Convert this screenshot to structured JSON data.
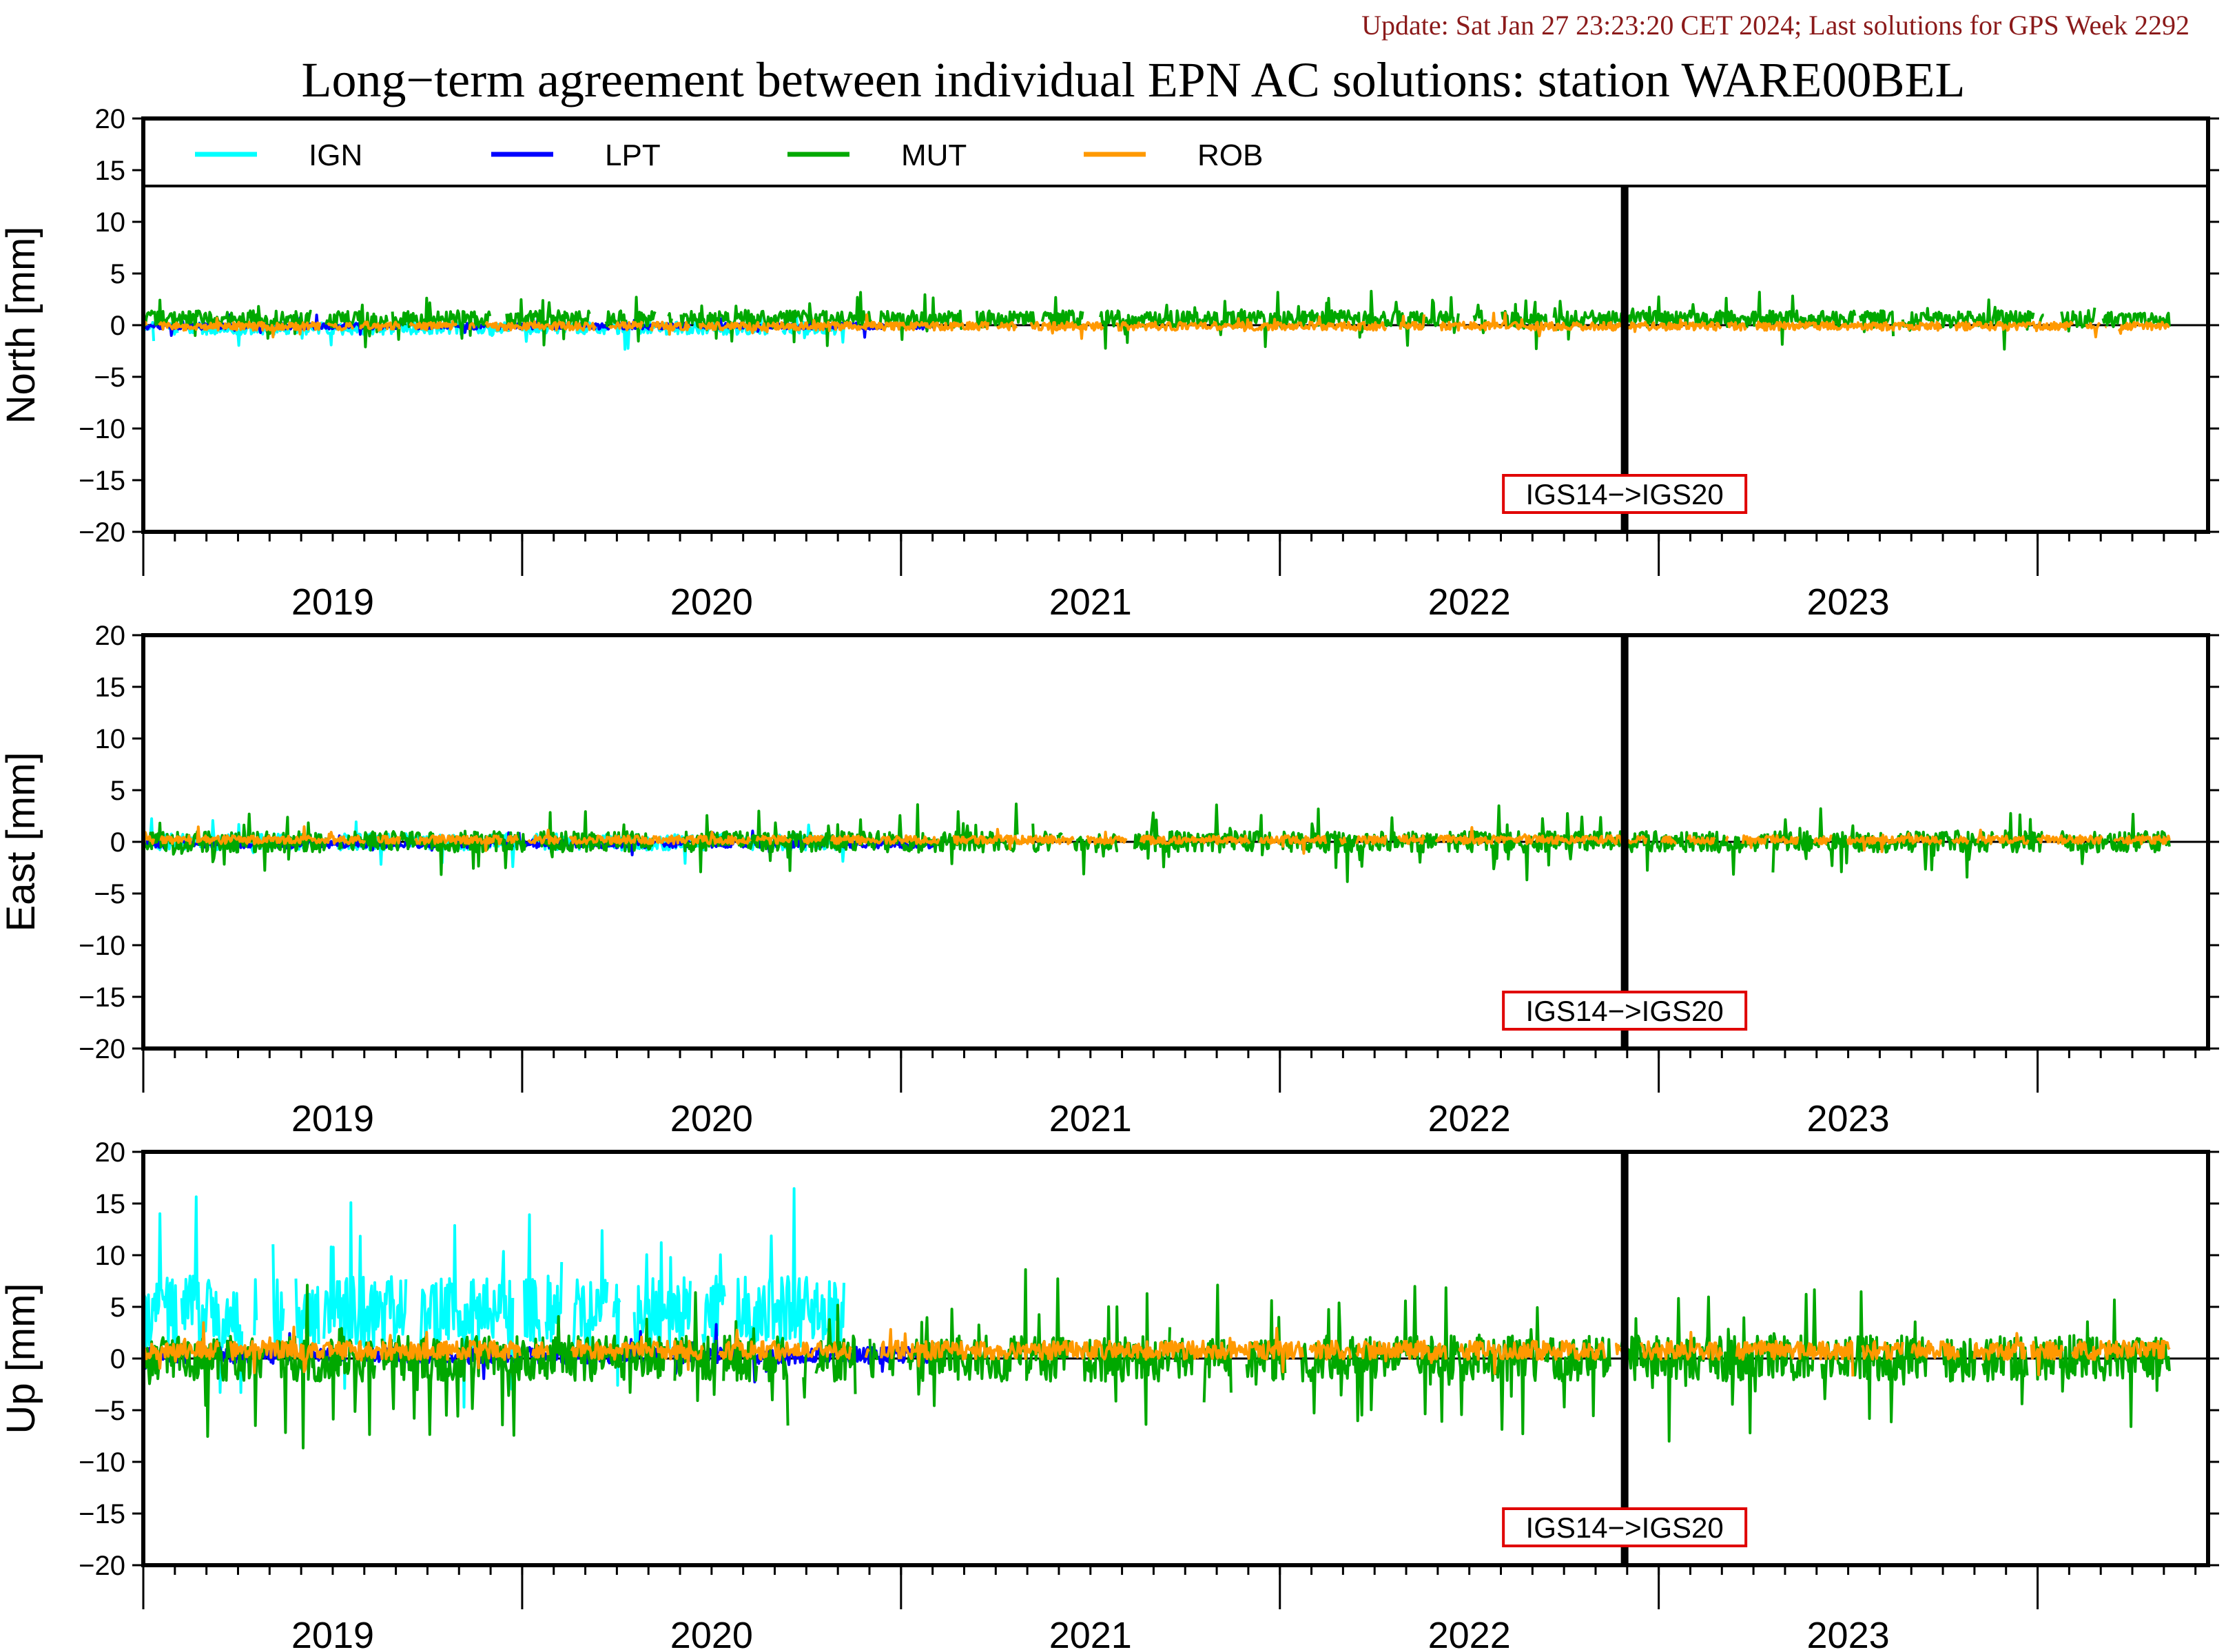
{
  "update_text": "Update: Sat Jan 27 23:23:20 CET 2024; Last solutions for GPS Week 2292",
  "title": "Long−term agreement between individual EPN AC solutions: station WARE00BEL",
  "colors": {
    "IGN": "#00ffff",
    "LPT": "#0000ff",
    "MUT": "#00a800",
    "ROB": "#ff9900",
    "annotation_border": "#e00000",
    "update_text": "#8b1a1a"
  },
  "chart_data": {
    "type": "line",
    "x_axis": {
      "unit": "year",
      "range": [
        2018.5,
        2023.95
      ],
      "year_labels": [
        "2019",
        "2020",
        "2021",
        "2022",
        "2023"
      ],
      "year_label_positions": [
        2019.0,
        2020.0,
        2021.0,
        2022.0,
        2023.0
      ],
      "major_ticks": [
        2018.5,
        2019.5,
        2020.5,
        2021.5,
        2022.5,
        2023.5
      ],
      "minor_tick_interval_months": 1
    },
    "y_ticks": [
      "20",
      "15",
      "10",
      "5",
      "0",
      "−5",
      "−10",
      "−15",
      "−20"
    ],
    "y_tick_values": [
      20,
      15,
      10,
      5,
      0,
      -5,
      -10,
      -15,
      -20
    ],
    "legend": {
      "placement": "top-left, full-width band in first panel",
      "entries": [
        "IGN",
        "LPT",
        "MUT",
        "ROB"
      ]
    },
    "reference_event": {
      "x": 2022.41,
      "label": "IGS14−>IGS20"
    },
    "panels": [
      {
        "name": "north",
        "ylabel": "North [mm]",
        "ylim": [
          -20,
          20
        ],
        "show_legend": true,
        "series": [
          {
            "name": "IGN",
            "range": [
              2018.5,
              2020.35
            ],
            "amp": 0.6,
            "bias": -0.3,
            "spike": 0.04
          },
          {
            "name": "LPT",
            "range": [
              2018.5,
              2020.6
            ],
            "amp": 0.3,
            "bias": -0.1,
            "spike": 0.03
          },
          {
            "name": "MUT",
            "range": [
              2018.5,
              2023.85
            ],
            "amp": 0.8,
            "bias": 0.6,
            "spike": 0.08
          },
          {
            "name": "ROB",
            "range": [
              2018.5,
              2023.85
            ],
            "amp": 0.4,
            "bias": -0.1,
            "spike": 0.02
          }
        ]
      },
      {
        "name": "east",
        "ylabel": "East [mm]",
        "ylim": [
          -20,
          20
        ],
        "show_legend": false,
        "series": [
          {
            "name": "IGN",
            "range": [
              2018.5,
              2020.35
            ],
            "amp": 0.8,
            "bias": 0.0,
            "spike": 0.05
          },
          {
            "name": "LPT",
            "range": [
              2018.5,
              2020.6
            ],
            "amp": 0.4,
            "bias": -0.2,
            "spike": 0.03
          },
          {
            "name": "MUT",
            "range": [
              2018.5,
              2023.85
            ],
            "amp": 1.0,
            "bias": 0.0,
            "spike": 0.08
          },
          {
            "name": "ROB",
            "range": [
              2018.5,
              2023.85
            ],
            "amp": 0.4,
            "bias": 0.2,
            "spike": 0.02
          }
        ]
      },
      {
        "name": "up",
        "ylabel": "Up [mm]",
        "ylim": [
          -20,
          20
        ],
        "show_legend": false,
        "series": [
          {
            "name": "IGN",
            "range": [
              2018.5,
              2020.35
            ],
            "amp": 3.5,
            "bias": 4.5,
            "spike": 0.1
          },
          {
            "name": "LPT",
            "range": [
              2018.5,
              2020.6
            ],
            "amp": 0.8,
            "bias": 0.3,
            "spike": 0.04
          },
          {
            "name": "MUT",
            "range": [
              2018.5,
              2023.85
            ],
            "amp": 2.2,
            "bias": 0.0,
            "spike": 0.1
          },
          {
            "name": "ROB",
            "range": [
              2018.5,
              2023.85
            ],
            "amp": 0.9,
            "bias": 0.8,
            "spike": 0.03
          }
        ]
      }
    ]
  }
}
